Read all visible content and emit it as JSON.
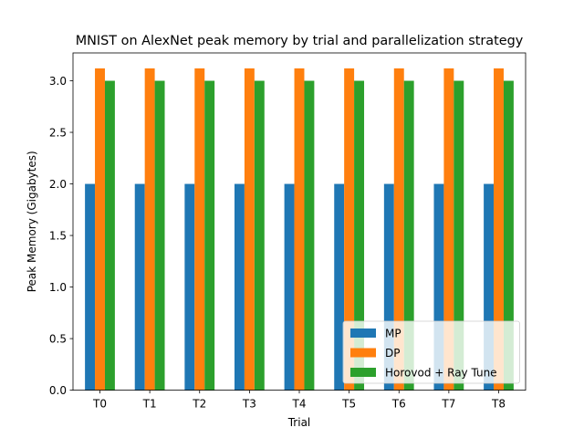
{
  "chart_data": {
    "type": "bar",
    "title": "MNIST on AlexNet peak memory by trial and parallelization strategy",
    "xlabel": "Trial",
    "ylabel": "Peak Memory (Gigabytes)",
    "categories": [
      "T0",
      "T1",
      "T2",
      "T3",
      "T4",
      "T5",
      "T6",
      "T7",
      "T8"
    ],
    "ylim": [
      0,
      3.27
    ],
    "yticks": [
      "0.0",
      "0.5",
      "1.0",
      "1.5",
      "2.0",
      "2.5",
      "3.0"
    ],
    "grid": false,
    "legend_position": "lower-right",
    "series": [
      {
        "name": "MP",
        "color": "#1f77b4",
        "values": [
          2.0,
          2.0,
          2.0,
          2.0,
          2.0,
          2.0,
          2.0,
          2.0,
          2.0
        ]
      },
      {
        "name": "DP",
        "color": "#ff7f0e",
        "values": [
          3.12,
          3.12,
          3.12,
          3.12,
          3.12,
          3.12,
          3.12,
          3.12,
          3.12
        ]
      },
      {
        "name": "Horovod + Ray Tune",
        "color": "#2ca02c",
        "values": [
          3.0,
          3.0,
          3.0,
          3.0,
          3.0,
          3.0,
          3.0,
          3.0,
          3.0
        ]
      }
    ]
  }
}
